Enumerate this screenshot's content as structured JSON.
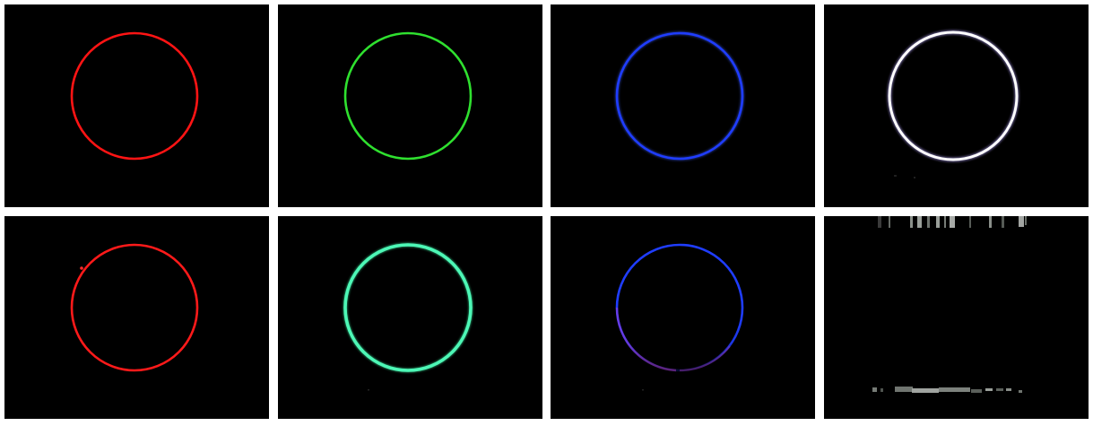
{
  "panels": [
    {
      "row": 1,
      "col": 1,
      "content": "ring",
      "ring_color": "#ff1414"
    },
    {
      "row": 1,
      "col": 2,
      "content": "ring",
      "ring_color": "#2fe02f"
    },
    {
      "row": 1,
      "col": 3,
      "content": "ring",
      "ring_color": "#1f3dff",
      "glow_color": "#3b5bff"
    },
    {
      "row": 1,
      "col": 4,
      "content": "ring",
      "ring_color": "#ffffff",
      "glow_color": "#b7a7ff"
    },
    {
      "row": 2,
      "col": 1,
      "content": "ring",
      "ring_color": "#ff1a1a"
    },
    {
      "row": 2,
      "col": 2,
      "content": "ring",
      "ring_color": "#4df7b6",
      "glow_color": "#35d08f"
    },
    {
      "row": 2,
      "col": 3,
      "content": "partial-ring",
      "ring_color": "#1f3dff",
      "fade_color": "#c23fd0"
    },
    {
      "row": 2,
      "col": 4,
      "content": "noise-artifacts",
      "artifact_color": "#8a8f8a"
    }
  ],
  "background_color": "#000000",
  "gap_color": "#ffffff"
}
